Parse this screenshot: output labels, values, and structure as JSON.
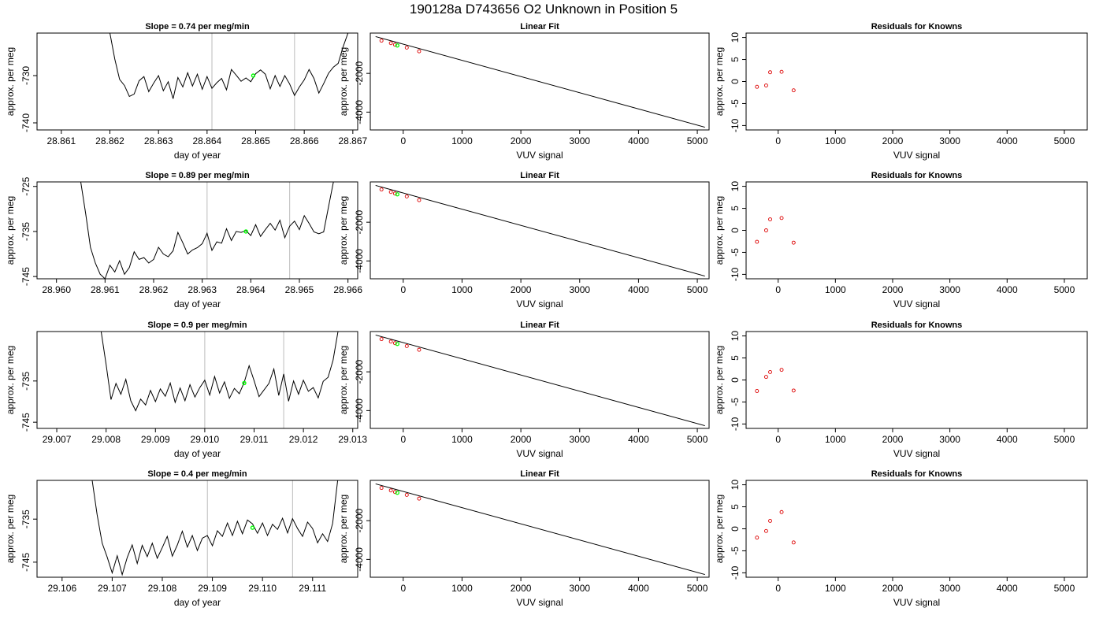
{
  "figure": {
    "title": "190128a      D743656   O2 Unknown in Position  5"
  },
  "colors": {
    "trace": "#000000",
    "marker": "#00ff00",
    "residual": "#dd0000",
    "vline": "#bbbbbb",
    "fit": "#000000"
  },
  "chart_data": [
    {
      "type": "line",
      "title": "Slope =  0.74  per meg/min",
      "xlabel": "day of year",
      "ylabel": "approx. per meg",
      "xlim": [
        28.8605,
        28.8671
      ],
      "ylim": [
        -741.5,
        -721
      ],
      "xticks": [
        "28.861",
        "28.862",
        "28.863",
        "28.864",
        "28.865",
        "28.866",
        "28.867"
      ],
      "yticks": [
        "-740",
        "-730"
      ],
      "vlines": [
        28.8641,
        28.8658
      ],
      "marker": {
        "x": 28.86495,
        "y": -730.0
      },
      "series": [
        {
          "x": [
            28.862,
            28.8621,
            28.8622,
            28.8623,
            28.8624,
            28.8625,
            28.8626,
            28.8627,
            28.8628,
            28.8629,
            28.863,
            28.8631,
            28.8632,
            28.8633,
            28.8634,
            28.8635,
            28.8636,
            28.8637,
            28.8638,
            28.8639,
            28.864,
            28.8641,
            28.8642,
            28.8643,
            28.8644,
            28.8645,
            28.8646,
            28.8647,
            28.8648,
            28.8649,
            28.865,
            28.8651,
            28.8652,
            28.8653,
            28.8654,
            28.8655,
            28.8656,
            28.8657,
            28.8658,
            28.8659,
            28.866,
            28.8661,
            28.8662,
            28.8663,
            28.8664,
            28.8665,
            28.8666,
            28.8667,
            28.8668,
            28.8669
          ],
          "y": [
            -721.0,
            -726.5,
            -730.8,
            -732.1,
            -734.4,
            -733.9,
            -731.1,
            -730.2,
            -733.4,
            -731.6,
            -730.0,
            -733.2,
            -731.3,
            -734.9,
            -730.4,
            -732.4,
            -729.4,
            -732.2,
            -729.7,
            -732.9,
            -730.2,
            -732.7,
            -731.5,
            -730.6,
            -733.0,
            -728.7,
            -729.9,
            -731.2,
            -730.5,
            -731.3,
            -729.6,
            -728.8,
            -729.7,
            -732.8,
            -730.0,
            -732.3,
            -730.0,
            -731.8,
            -734.2,
            -732.4,
            -730.9,
            -728.7,
            -730.6,
            -733.7,
            -731.7,
            -729.5,
            -728.2,
            -727.4,
            -723.9,
            -721.0
          ]
        }
      ]
    },
    {
      "type": "line",
      "title": "Linear Fit",
      "xlabel": "VUV signal",
      "ylabel": "approx. per meg",
      "xlim": [
        -560,
        5200
      ],
      "ylim": [
        -4920,
        80
      ],
      "xticks": [
        "0",
        "1000",
        "2000",
        "3000",
        "4000",
        "5000"
      ],
      "yticks": [
        "-4000",
        "-2000"
      ],
      "fit_line": {
        "x": [
          -470,
          5130
        ],
        "y": [
          -100,
          -4780
        ]
      },
      "knowns": {
        "x": [
          -370,
          -210,
          -140,
          60,
          270
        ],
        "y": [
          -310,
          -440,
          -520,
          -670,
          -860
        ]
      },
      "unknown": {
        "x": [
          -100
        ],
        "y": [
          -560
        ]
      }
    },
    {
      "type": "scatter",
      "title": "Residuals for Knowns",
      "xlabel": "VUV signal",
      "ylabel": "approx. per meg",
      "xlim": [
        -560,
        5400
      ],
      "ylim": [
        -11,
        11
      ],
      "xticks": [
        "0",
        "1000",
        "2000",
        "3000",
        "4000",
        "5000"
      ],
      "yticks": [
        "-10",
        "-5",
        "0",
        "5",
        "10"
      ],
      "points": {
        "x": [
          -370,
          -210,
          -140,
          60,
          270
        ],
        "y": [
          -1.2,
          -0.9,
          2.1,
          2.2,
          -2.0
        ]
      }
    },
    {
      "type": "line",
      "title": "Slope =  0.89  per meg/min",
      "xlabel": "day of year",
      "ylabel": "approx. per meg",
      "xlim": [
        28.9596,
        28.9662
      ],
      "ylim": [
        -745.5,
        -724
      ],
      "xticks": [
        "28.960",
        "28.961",
        "28.962",
        "28.963",
        "28.964",
        "28.965",
        "28.966"
      ],
      "yticks": [
        "-745",
        "-735",
        "-725"
      ],
      "vlines": [
        28.9631,
        28.9648
      ],
      "marker": {
        "x": 28.9639,
        "y": -735.0
      },
      "series": [
        {
          "x": [
            28.9605,
            28.9606,
            28.9607,
            28.9608,
            28.9609,
            28.961,
            28.9611,
            28.9612,
            28.9613,
            28.9614,
            28.9615,
            28.9616,
            28.9617,
            28.9618,
            28.9619,
            28.962,
            28.9621,
            28.9622,
            28.9623,
            28.9624,
            28.9625,
            28.9626,
            28.9627,
            28.9628,
            28.9629,
            28.963,
            28.9631,
            28.9632,
            28.9633,
            28.9634,
            28.9635,
            28.9636,
            28.9637,
            28.9638,
            28.9639,
            28.964,
            28.9641,
            28.9642,
            28.9643,
            28.9644,
            28.9645,
            28.9646,
            28.9647,
            28.9648,
            28.9649,
            28.965,
            28.9651,
            28.9652,
            28.9653,
            28.9654,
            28.9655,
            28.9656,
            28.9657
          ],
          "y": [
            -724.0,
            -731.0,
            -738.5,
            -742.0,
            -744.5,
            -745.5,
            -742.5,
            -744.0,
            -741.5,
            -744.5,
            -743.0,
            -739.5,
            -741.2,
            -740.8,
            -742.0,
            -741.2,
            -738.5,
            -740.0,
            -740.6,
            -739.3,
            -735.2,
            -737.5,
            -740.0,
            -739.1,
            -738.6,
            -737.7,
            -735.4,
            -739.2,
            -737.3,
            -737.6,
            -734.4,
            -737.0,
            -735.0,
            -735.2,
            -734.8,
            -735.9,
            -733.5,
            -736.1,
            -734.6,
            -733.2,
            -734.7,
            -732.5,
            -736.4,
            -733.8,
            -732.7,
            -734.6,
            -731.5,
            -733.2,
            -735.1,
            -735.5,
            -735.1,
            -729.5,
            -724.0
          ]
        }
      ]
    },
    {
      "type": "line",
      "title": "Linear Fit",
      "xlabel": "VUV signal",
      "ylabel": "approx. per meg",
      "xlim": [
        -560,
        5200
      ],
      "ylim": [
        -4920,
        80
      ],
      "xticks": [
        "0",
        "1000",
        "2000",
        "3000",
        "4000",
        "5000"
      ],
      "yticks": [
        "-4000",
        "-2000"
      ],
      "fit_line": {
        "x": [
          -470,
          5130
        ],
        "y": [
          -100,
          -4780
        ]
      },
      "knowns": {
        "x": [
          -370,
          -210,
          -140,
          60,
          270
        ],
        "y": [
          -310,
          -440,
          -520,
          -670,
          -860
        ]
      },
      "unknown": {
        "x": [
          -100
        ],
        "y": [
          -560
        ]
      }
    },
    {
      "type": "scatter",
      "title": "Residuals for Knowns",
      "xlabel": "VUV signal",
      "ylabel": "approx. per meg",
      "xlim": [
        -560,
        5400
      ],
      "ylim": [
        -11,
        11
      ],
      "xticks": [
        "0",
        "1000",
        "2000",
        "3000",
        "4000",
        "5000"
      ],
      "yticks": [
        "-10",
        "-5",
        "0",
        "5",
        "10"
      ],
      "points": {
        "x": [
          -370,
          -210,
          -140,
          60,
          270
        ],
        "y": [
          -2.6,
          0.0,
          2.5,
          2.8,
          -2.8
        ]
      }
    },
    {
      "type": "line",
      "title": "Slope =  0.9  per meg/min",
      "xlabel": "day of year",
      "ylabel": "approx. per meg",
      "xlim": [
        29.0066,
        29.0131
      ],
      "ylim": [
        -746.5,
        -723
      ],
      "xticks": [
        "29.007",
        "29.008",
        "29.009",
        "29.010",
        "29.011",
        "29.012",
        "29.013"
      ],
      "yticks": [
        "-745",
        "-735"
      ],
      "vlines": [
        29.01,
        29.0116
      ],
      "marker": {
        "x": 29.0108,
        "y": -735.5
      },
      "series": [
        {
          "x": [
            29.0079,
            29.008,
            29.0081,
            29.0082,
            29.0083,
            29.0084,
            29.0085,
            29.0086,
            29.0087,
            29.0088,
            29.0089,
            29.009,
            29.0091,
            29.0092,
            29.0093,
            29.0094,
            29.0095,
            29.0096,
            29.0097,
            29.0098,
            29.0099,
            29.01,
            29.0101,
            29.0102,
            29.0103,
            29.0104,
            29.0105,
            29.0106,
            29.0107,
            29.0108,
            29.0109,
            29.011,
            29.0111,
            29.0112,
            29.0113,
            29.0114,
            29.0115,
            29.0116,
            29.0117,
            29.0118,
            29.0119,
            29.012,
            29.0121,
            29.0122,
            29.0123,
            29.0124,
            29.0125,
            29.0126,
            29.0127
          ],
          "y": [
            -723.0,
            -731.0,
            -739.5,
            -735.6,
            -738.2,
            -734.6,
            -739.8,
            -742.2,
            -739.4,
            -740.8,
            -737.3,
            -740.0,
            -736.9,
            -738.7,
            -735.5,
            -740.2,
            -736.7,
            -739.8,
            -735.9,
            -738.9,
            -736.6,
            -734.8,
            -738.4,
            -733.9,
            -737.9,
            -735.2,
            -739.2,
            -736.8,
            -738.1,
            -735.3,
            -731.3,
            -734.9,
            -738.8,
            -737.2,
            -735.6,
            -732.1,
            -738.5,
            -733.3,
            -739.9,
            -735.0,
            -738.2,
            -734.8,
            -737.5,
            -736.6,
            -739.1,
            -735.1,
            -734.1,
            -730.0,
            -723.0
          ]
        }
      ]
    },
    {
      "type": "line",
      "title": "Linear Fit",
      "xlabel": "VUV signal",
      "ylabel": "approx. per meg",
      "xlim": [
        -560,
        5200
      ],
      "ylim": [
        -4920,
        80
      ],
      "xticks": [
        "0",
        "1000",
        "2000",
        "3000",
        "4000",
        "5000"
      ],
      "yticks": [
        "-4000",
        "-2000"
      ],
      "fit_line": {
        "x": [
          -470,
          5130
        ],
        "y": [
          -100,
          -4780
        ]
      },
      "knowns": {
        "x": [
          -370,
          -210,
          -140,
          60,
          270
        ],
        "y": [
          -310,
          -440,
          -520,
          -670,
          -860
        ]
      },
      "unknown": {
        "x": [
          -100
        ],
        "y": [
          -560
        ]
      }
    },
    {
      "type": "scatter",
      "title": "Residuals for Knowns",
      "xlabel": "VUV signal",
      "ylabel": "approx. per meg",
      "xlim": [
        -560,
        5400
      ],
      "ylim": [
        -11,
        11
      ],
      "xticks": [
        "0",
        "1000",
        "2000",
        "3000",
        "4000",
        "5000"
      ],
      "yticks": [
        "-10",
        "-5",
        "0",
        "5",
        "10"
      ],
      "points": {
        "x": [
          -370,
          -210,
          -140,
          60,
          270
        ],
        "y": [
          -2.5,
          0.7,
          1.8,
          2.3,
          -2.4
        ]
      }
    },
    {
      "type": "line",
      "title": "Slope =  0.4  per meg/min",
      "xlabel": "day of year",
      "ylabel": "approx. per meg",
      "xlim": [
        29.1055,
        29.1119
      ],
      "ylim": [
        -748.5,
        -726
      ],
      "xticks": [
        "29.106",
        "29.107",
        "29.108",
        "29.109",
        "29.110",
        "29.111"
      ],
      "yticks": [
        "-745",
        "-735"
      ],
      "vlines": [
        29.1089,
        29.1106
      ],
      "marker": {
        "x": 29.1098,
        "y": -737.0
      },
      "series": [
        {
          "x": [
            29.1066,
            29.1067,
            29.1068,
            29.1069,
            29.107,
            29.1071,
            29.1072,
            29.1073,
            29.1074,
            29.1075,
            29.1076,
            29.1077,
            29.1078,
            29.1079,
            29.108,
            29.1081,
            29.1082,
            29.1083,
            29.1084,
            29.1085,
            29.1086,
            29.1087,
            29.1088,
            29.1089,
            29.109,
            29.1091,
            29.1092,
            29.1093,
            29.1094,
            29.1095,
            29.1096,
            29.1097,
            29.1098,
            29.1099,
            29.11,
            29.1101,
            29.1102,
            29.1103,
            29.1104,
            29.1105,
            29.1106,
            29.1107,
            29.1108,
            29.1109,
            29.111,
            29.1111,
            29.1112,
            29.1113,
            29.1114,
            29.1115
          ],
          "y": [
            -726.0,
            -734.0,
            -740.6,
            -743.8,
            -747.5,
            -743.5,
            -747.9,
            -743.9,
            -741.0,
            -745.3,
            -741.1,
            -743.7,
            -740.6,
            -744.1,
            -741.6,
            -739.0,
            -743.6,
            -741.0,
            -737.8,
            -741.5,
            -738.8,
            -742.3,
            -739.4,
            -738.8,
            -741.2,
            -737.7,
            -739.0,
            -735.9,
            -738.8,
            -735.5,
            -738.4,
            -735.2,
            -736.1,
            -738.3,
            -735.9,
            -738.8,
            -736.2,
            -737.4,
            -734.8,
            -738.2,
            -734.9,
            -737.2,
            -739.0,
            -735.7,
            -737.2,
            -740.5,
            -738.4,
            -740.2,
            -736.0,
            -726.0
          ]
        }
      ]
    },
    {
      "type": "line",
      "title": "Linear Fit",
      "xlabel": "VUV signal",
      "ylabel": "approx. per meg",
      "xlim": [
        -560,
        5200
      ],
      "ylim": [
        -4920,
        80
      ],
      "xticks": [
        "0",
        "1000",
        "2000",
        "3000",
        "4000",
        "5000"
      ],
      "yticks": [
        "-4000",
        "-2000"
      ],
      "fit_line": {
        "x": [
          -470,
          5130
        ],
        "y": [
          -100,
          -4780
        ]
      },
      "knowns": {
        "x": [
          -370,
          -210,
          -140,
          60,
          270
        ],
        "y": [
          -310,
          -440,
          -520,
          -670,
          -860
        ]
      },
      "unknown": {
        "x": [
          -100
        ],
        "y": [
          -560
        ]
      }
    },
    {
      "type": "scatter",
      "title": "Residuals for Knowns",
      "xlabel": "VUV signal",
      "ylabel": "approx. per meg",
      "xlim": [
        -560,
        5400
      ],
      "ylim": [
        -11,
        11
      ],
      "xticks": [
        "0",
        "1000",
        "2000",
        "3000",
        "4000",
        "5000"
      ],
      "yticks": [
        "-10",
        "-5",
        "0",
        "5",
        "10"
      ],
      "points": {
        "x": [
          -370,
          -210,
          -140,
          60,
          270
        ],
        "y": [
          -2.0,
          -0.5,
          1.8,
          3.8,
          -3.1
        ]
      }
    }
  ]
}
